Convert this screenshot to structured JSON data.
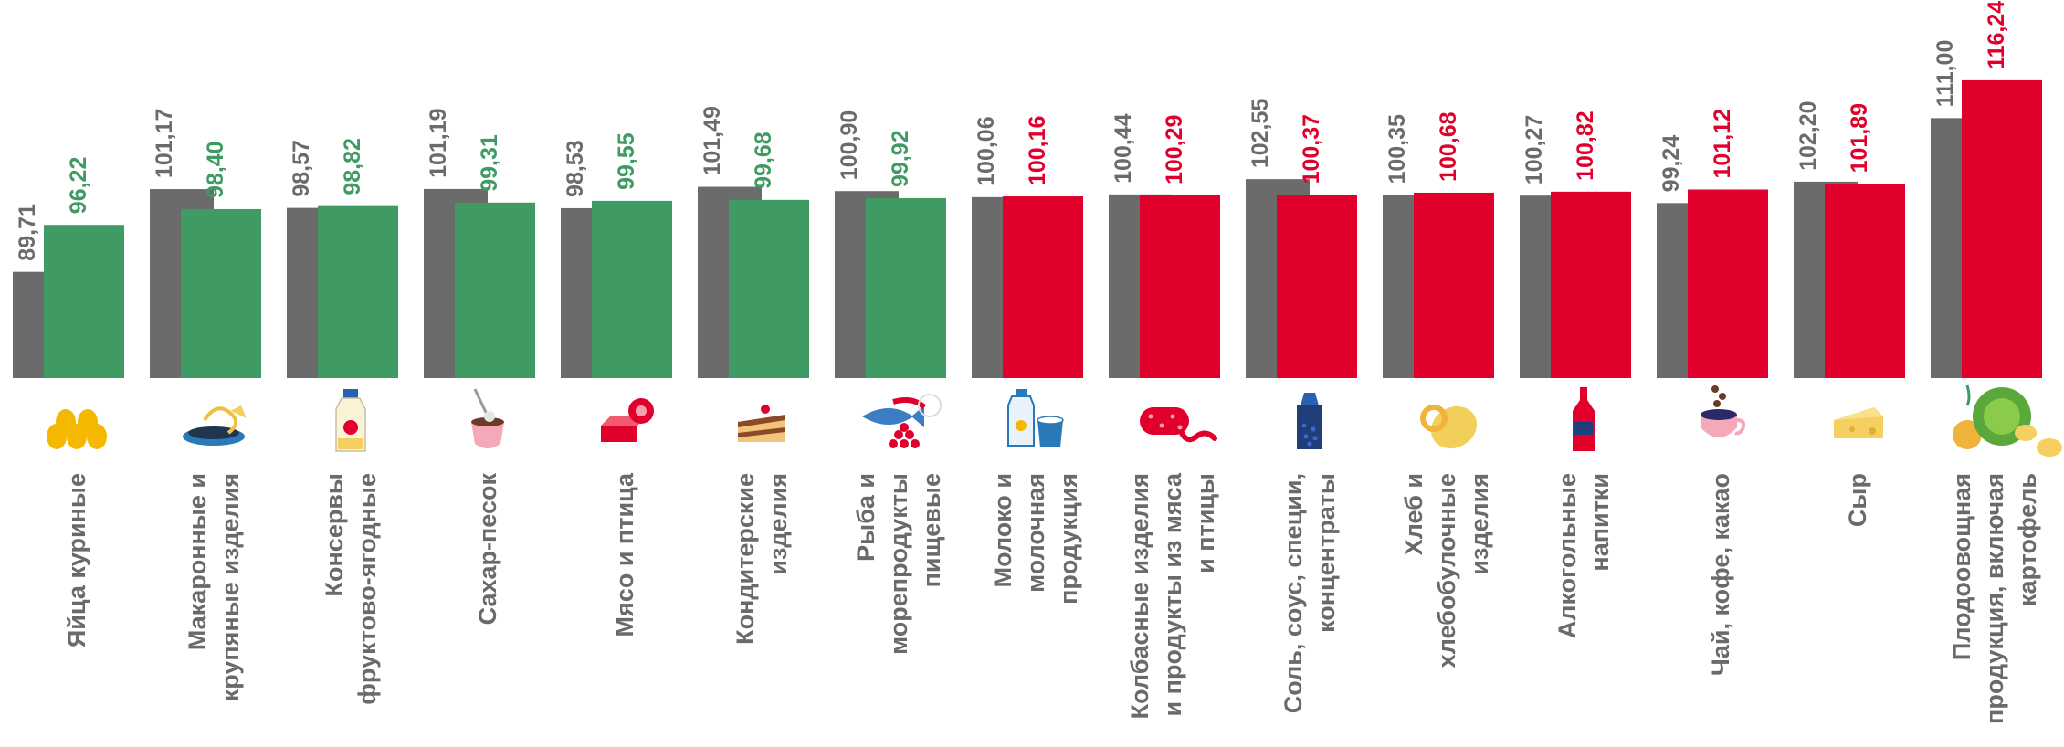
{
  "chart_data": {
    "type": "bar",
    "categories": [
      [
        "Яйца куриные"
      ],
      [
        "Макаронные и",
        "крупяные изделия"
      ],
      [
        "Консервы",
        "фруктово-ягодные"
      ],
      [
        "Сахар-песок"
      ],
      [
        "Мясо и птица"
      ],
      [
        "Кондитерские",
        "изделия"
      ],
      [
        "Рыба и",
        "морепродукты",
        "пищевые"
      ],
      [
        "Молоко и",
        "молочная",
        "продукция"
      ],
      [
        "Колбасные изделия",
        "и продукты из мяса",
        "и птицы"
      ],
      [
        "Соль, соус, специи,",
        "концентраты"
      ],
      [
        "Хлеб и",
        "хлебобулочные",
        "изделия"
      ],
      [
        "Алкогольные",
        "напитки"
      ],
      [
        "Чай, кофе, какао"
      ],
      [
        "Сыр"
      ],
      [
        "Плодоовощная",
        "продукция, включая",
        "картофель"
      ]
    ],
    "icons": [
      "eggs-icon",
      "pasta-icon",
      "jar-icon",
      "sugar-icon",
      "meat-icon",
      "cake-icon",
      "fish-icon",
      "milk-icon",
      "sausage-icon",
      "salt-shaker-icon",
      "bread-icon",
      "wine-bottle-icon",
      "tea-cup-icon",
      "cheese-icon",
      "vegetables-icon"
    ],
    "series": [
      {
        "values": [
          89.71,
          101.17,
          98.57,
          101.19,
          98.53,
          101.49,
          100.9,
          100.06,
          100.44,
          102.55,
          100.35,
          100.27,
          99.24,
          102.2,
          111.0
        ],
        "labels": [
          "89,71",
          "101,17",
          "98,57",
          "101,19",
          "98,53",
          "101,49",
          "100,90",
          "100,06",
          "100,44",
          "102,55",
          "100,35",
          "100,27",
          "99,24",
          "102,20",
          "111,00"
        ],
        "color": "#6b6b6b"
      },
      {
        "values": [
          96.22,
          98.4,
          98.82,
          99.31,
          99.55,
          99.68,
          99.92,
          100.16,
          100.29,
          100.37,
          100.68,
          100.82,
          101.12,
          101.89,
          116.24
        ],
        "labels": [
          "96,22",
          "98,40",
          "98,82",
          "99,31",
          "99,55",
          "99,68",
          "99,92",
          "100,16",
          "100,29",
          "100,37",
          "100,68",
          "100,82",
          "101,12",
          "101,89",
          "116,24"
        ],
        "color_below_100": "#3f9a63",
        "color_above_100": "#e0002b"
      }
    ],
    "colors": {
      "grey_series": "#6b6b6b",
      "green": "#3f9a63",
      "red": "#e0002b",
      "grey_label": "#6a6a6a"
    },
    "ylim": [
      75,
      118
    ],
    "grid": false,
    "legend": "none"
  }
}
